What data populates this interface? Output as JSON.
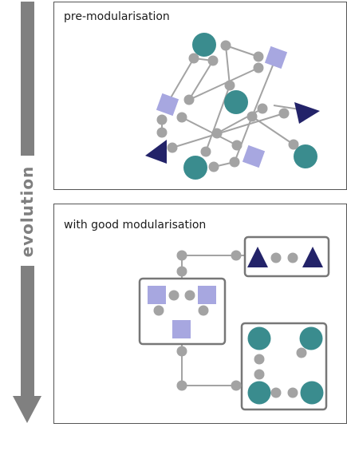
{
  "colors": {
    "teal": "#3a8c8e",
    "lavender": "#a7a7e0",
    "navy": "#232369",
    "connector": "#a3a3a3",
    "arrow": "#808080",
    "frame": "#555555"
  },
  "arrow": {
    "label": "evolution"
  },
  "panels": {
    "before": {
      "title": "pre-modularisation"
    },
    "after": {
      "title": "with good modularisation"
    }
  },
  "icons": {
    "teal_node": "teal-circle-icon",
    "lavender_node": "lavender-square-icon",
    "navy_node": "navy-triangle-icon",
    "connector_dot": "grey-dot-icon"
  }
}
